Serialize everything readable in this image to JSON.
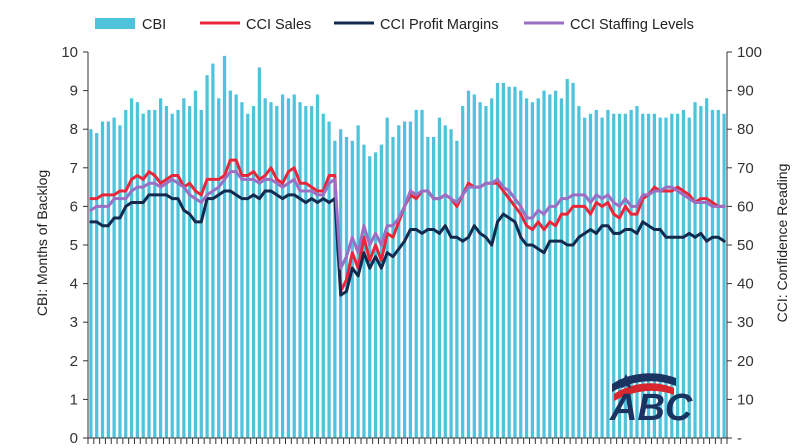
{
  "chart_data": {
    "type": "bar+line",
    "title": "",
    "left_axis": {
      "label": "CBI: Months of Backlog",
      "ylim": [
        0,
        10
      ],
      "ticks": [
        "0",
        "1",
        "2",
        "3",
        "4",
        "5",
        "6",
        "7",
        "8",
        "9",
        "10"
      ]
    },
    "right_axis": {
      "label": "CCI: Confidence Reading",
      "ylim": [
        0,
        100
      ],
      "ticks": [
        "-",
        "10",
        "20",
        "30",
        "40",
        "50",
        "60",
        "70",
        "80",
        "90",
        "100"
      ]
    },
    "legend_position": "top",
    "colors": {
      "cbi": "#4fc3dc",
      "sales": "#e8283a",
      "profit": "#112a4e",
      "staffing": "#9b6fc3"
    },
    "series": [
      {
        "name": "CBI",
        "type": "bar",
        "axis": "left",
        "values": [
          8.0,
          7.9,
          8.2,
          8.2,
          8.3,
          8.1,
          8.5,
          8.8,
          8.7,
          8.4,
          8.5,
          8.5,
          8.8,
          8.6,
          8.4,
          8.5,
          8.8,
          8.6,
          9.0,
          8.5,
          9.4,
          9.7,
          8.8,
          9.9,
          9.0,
          8.9,
          8.7,
          8.4,
          8.6,
          9.6,
          8.8,
          8.7,
          8.6,
          8.9,
          8.8,
          8.9,
          8.7,
          8.6,
          8.6,
          8.9,
          8.4,
          8.2,
          7.7,
          8.0,
          7.8,
          7.7,
          8.1,
          7.6,
          7.3,
          7.4,
          7.6,
          8.3,
          7.8,
          8.1,
          8.2,
          8.2,
          8.5,
          8.5,
          7.8,
          7.8,
          8.3,
          8.1,
          8.0,
          7.7,
          8.6,
          9.0,
          8.9,
          8.7,
          8.6,
          8.8,
          9.2,
          9.2,
          9.1,
          9.1,
          9.0,
          8.8,
          8.7,
          8.8,
          9.0,
          8.9,
          9.0,
          8.8,
          9.3,
          9.2,
          8.6,
          8.3,
          8.4,
          8.5,
          8.3,
          8.5,
          8.4,
          8.4,
          8.4,
          8.5,
          8.6,
          8.4,
          8.4,
          8.4,
          8.3,
          8.3,
          8.4,
          8.4,
          8.5,
          8.3,
          8.7,
          8.6,
          8.8,
          8.5,
          8.5,
          8.4
        ]
      },
      {
        "name": "CCI Sales",
        "type": "line",
        "axis": "right",
        "values": [
          62,
          62,
          63,
          63,
          63,
          64,
          64,
          67,
          68,
          67,
          69,
          68,
          66,
          67,
          68,
          68,
          65,
          66,
          64,
          63,
          67,
          67,
          67,
          68,
          72,
          72,
          68,
          68,
          69,
          67,
          68,
          70,
          67,
          66,
          69,
          70,
          66,
          66,
          65,
          64,
          64,
          68,
          68,
          38,
          41,
          48,
          44,
          52,
          46,
          50,
          46,
          53,
          52,
          56,
          60,
          63,
          62,
          64,
          64,
          62,
          62,
          63,
          62,
          60,
          63,
          66,
          65,
          65,
          66,
          66,
          66,
          64,
          62,
          60,
          58,
          55,
          54,
          56,
          54,
          56,
          55,
          58,
          58,
          60,
          60,
          60,
          58,
          61,
          60,
          61,
          58,
          57,
          60,
          58,
          58,
          62,
          63,
          65,
          64,
          64,
          64,
          65,
          64,
          63,
          61,
          62,
          62,
          61,
          60,
          60
        ]
      },
      {
        "name": "CCI Profit Margins",
        "type": "line",
        "axis": "right",
        "values": [
          56,
          56,
          55,
          55,
          57,
          57,
          60,
          61,
          61,
          61,
          63,
          63,
          63,
          63,
          62,
          62,
          59,
          58,
          56,
          56,
          62,
          62,
          63,
          64,
          64,
          63,
          62,
          62,
          63,
          62,
          64,
          64,
          63,
          62,
          63,
          63,
          62,
          61,
          62,
          61,
          62,
          61,
          62,
          37,
          38,
          44,
          42,
          48,
          44,
          47,
          44,
          48,
          47,
          49,
          51,
          54,
          54,
          53,
          54,
          54,
          53,
          55,
          52,
          52,
          51,
          52,
          55,
          53,
          52,
          50,
          56,
          58,
          57,
          56,
          52,
          50,
          50,
          49,
          48,
          51,
          51,
          51,
          50,
          50,
          52,
          53,
          54,
          53,
          55,
          55,
          53,
          53,
          54,
          54,
          53,
          56,
          55,
          54,
          54,
          52,
          52,
          52,
          52,
          53,
          52,
          53,
          51,
          52,
          52,
          51
        ]
      },
      {
        "name": "CCI Staffing Levels",
        "type": "line",
        "axis": "right",
        "values": [
          59,
          60,
          60,
          60,
          62,
          62,
          62,
          64,
          65,
          65,
          66,
          66,
          65,
          66,
          67,
          66,
          65,
          63,
          62,
          61,
          63,
          64,
          65,
          67,
          69,
          69,
          67,
          67,
          67,
          66,
          67,
          67,
          66,
          65,
          66,
          67,
          64,
          64,
          64,
          63,
          63,
          66,
          67,
          44,
          47,
          52,
          48,
          55,
          50,
          53,
          50,
          55,
          55,
          57,
          60,
          64,
          63,
          64,
          64,
          62,
          62,
          63,
          62,
          61,
          63,
          65,
          65,
          65,
          66,
          66,
          67,
          65,
          64,
          62,
          60,
          57,
          57,
          59,
          58,
          60,
          60,
          62,
          62,
          63,
          63,
          63,
          61,
          63,
          62,
          63,
          61,
          60,
          62,
          60,
          60,
          63,
          63,
          64,
          64,
          65,
          65,
          64,
          63,
          62,
          61,
          61,
          61,
          60,
          60,
          60
        ]
      }
    ],
    "legend": [
      "CBI",
      "CCI Sales",
      "CCI Profit Margins",
      "CCI Staffing Levels"
    ]
  },
  "logo": {
    "text": "ABC"
  }
}
